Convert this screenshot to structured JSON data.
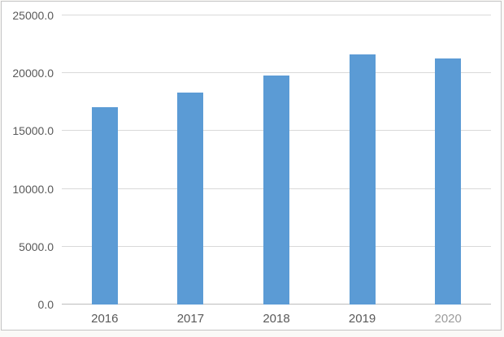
{
  "chart_data": {
    "type": "bar",
    "categories": [
      "2016",
      "2017",
      "2018",
      "2019",
      "2020"
    ],
    "values": [
      17100,
      18300,
      19800,
      21600,
      21250
    ],
    "title": "",
    "xlabel": "",
    "ylabel": "",
    "ylim": [
      0,
      25000
    ],
    "ytick_step": 5000,
    "ytick_labels": [
      "0.0",
      "5000.0",
      "10000.0",
      "15000.0",
      "20000.0",
      "25000.0"
    ],
    "grid": true,
    "legend": "none",
    "colors": {
      "bar": "#5B9BD5",
      "gridline": "#D9D9D9",
      "axis_line": "#BDBDBD",
      "tick_label": "#595959",
      "faded_tick_label": "#9B9B9B",
      "frame_border": "#C4C4C4",
      "background": "#FFFFFF"
    },
    "faded_categories": [
      "2020"
    ]
  }
}
